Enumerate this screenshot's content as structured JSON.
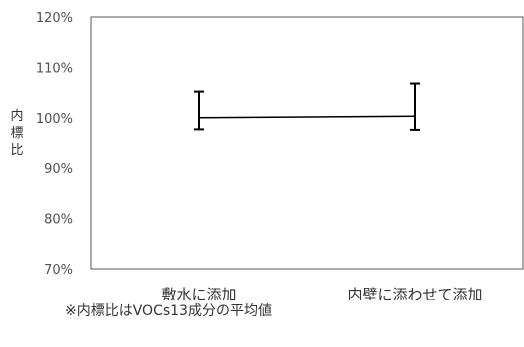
{
  "chart_data": {
    "type": "line",
    "categories": [
      "敷水に添加",
      "内壁に添わせて添加"
    ],
    "values": [
      100,
      100.3
    ],
    "error_high": [
      105.2,
      106.8
    ],
    "error_low": [
      97.7,
      97.6
    ],
    "ylabel": "内標比",
    "ylim": [
      70,
      120
    ],
    "y_ticks": [
      "70%",
      "80%",
      "90%",
      "100%",
      "110%",
      "120%"
    ],
    "grid": false,
    "series_color": "#000000"
  },
  "footnote": "※内標比はVOCs13成分の平均値"
}
